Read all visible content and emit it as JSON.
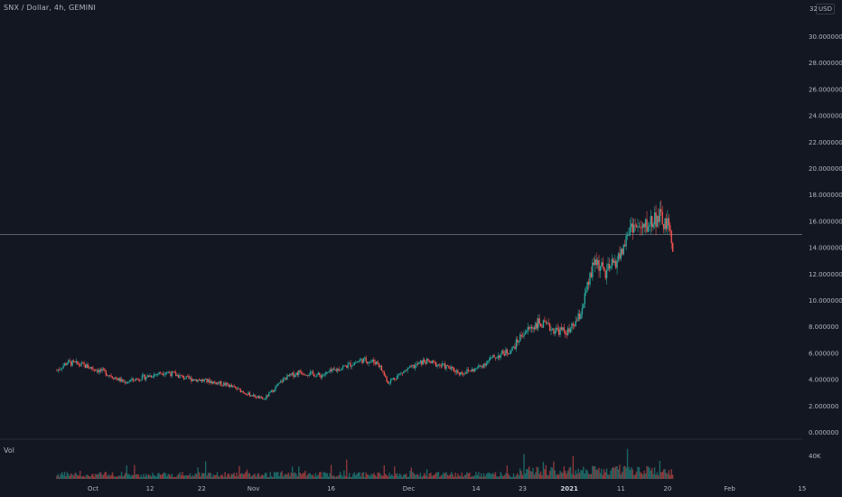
{
  "header": {
    "title": "SNX / Dollar, 4h, GEMINI"
  },
  "currency": {
    "top_value": "32",
    "label": "USD"
  },
  "volume": {
    "label": "Vol",
    "tick": "40K"
  },
  "colors": {
    "background": "#131722",
    "up": "#26a69a",
    "down": "#ef5350",
    "grid": "#2a2e39",
    "line": "#5d606b"
  },
  "chart_data": {
    "type": "candlestick",
    "y_ticks": [
      "30.000000",
      "28.000000",
      "26.000000",
      "24.000000",
      "22.000000",
      "20.000000",
      "18.000000",
      "16.000000",
      "14.000000",
      "12.000000",
      "10.000000",
      "8.000000",
      "6.000000",
      "4.000000",
      "2.000000",
      "0.000000"
    ],
    "x_ticks": [
      {
        "label": "Oct",
        "date": "2020-10-01",
        "bold": false
      },
      {
        "label": "12",
        "date": "2020-10-12",
        "bold": false
      },
      {
        "label": "22",
        "date": "2020-10-22",
        "bold": false
      },
      {
        "label": "Nov",
        "date": "2020-11-01",
        "bold": false
      },
      {
        "label": "16",
        "date": "2020-11-16",
        "bold": false
      },
      {
        "label": "Dec",
        "date": "2020-12-01",
        "bold": false
      },
      {
        "label": "14",
        "date": "2020-12-14",
        "bold": false
      },
      {
        "label": "23",
        "date": "2020-12-23",
        "bold": false
      },
      {
        "label": "2021",
        "date": "2021-01-01",
        "bold": true
      },
      {
        "label": "11",
        "date": "2021-01-11",
        "bold": false
      },
      {
        "label": "20",
        "date": "2021-01-20",
        "bold": false
      },
      {
        "label": "Feb",
        "date": "2021-02-01",
        "bold": false
      },
      {
        "label": "15",
        "date": "2021-02-15",
        "bold": false
      }
    ],
    "ylim": [
      0,
      32
    ],
    "xlim": [
      "2020-09-20",
      "2021-02-22"
    ],
    "horizontal_line": 15.0,
    "price_path": [
      [
        "2020-09-24",
        4.7
      ],
      [
        "2020-09-26",
        5.3
      ],
      [
        "2020-09-29",
        5.1
      ],
      [
        "2020-10-03",
        4.6
      ],
      [
        "2020-10-07",
        3.8
      ],
      [
        "2020-10-11",
        4.2
      ],
      [
        "2020-10-15",
        4.6
      ],
      [
        "2020-10-19",
        4.1
      ],
      [
        "2020-10-23",
        3.9
      ],
      [
        "2020-10-27",
        3.6
      ],
      [
        "2020-10-31",
        2.9
      ],
      [
        "2020-11-03",
        2.5
      ],
      [
        "2020-11-07",
        4.1
      ],
      [
        "2020-11-10",
        4.6
      ],
      [
        "2020-11-14",
        4.3
      ],
      [
        "2020-11-18",
        4.9
      ],
      [
        "2020-11-22",
        5.5
      ],
      [
        "2020-11-25",
        5.3
      ],
      [
        "2020-11-27",
        3.8
      ],
      [
        "2020-11-30",
        4.6
      ],
      [
        "2020-12-04",
        5.4
      ],
      [
        "2020-12-08",
        5.0
      ],
      [
        "2020-12-11",
        4.5
      ],
      [
        "2020-12-14",
        4.8
      ],
      [
        "2020-12-17",
        5.6
      ],
      [
        "2020-12-21",
        6.3
      ],
      [
        "2020-12-23",
        7.5
      ],
      [
        "2020-12-26",
        8.3
      ],
      [
        "2020-12-29",
        7.8
      ],
      [
        "2021-01-01",
        7.6
      ],
      [
        "2021-01-03",
        8.8
      ],
      [
        "2021-01-06",
        13.1
      ],
      [
        "2021-01-08",
        12.0
      ],
      [
        "2021-01-11",
        13.5
      ],
      [
        "2021-01-13",
        15.8
      ],
      [
        "2021-01-15",
        15.3
      ],
      [
        "2021-01-18",
        16.4
      ],
      [
        "2021-01-20",
        15.6
      ],
      [
        "2021-01-21",
        14.3
      ]
    ],
    "volume_series": {
      "name": "Vol",
      "max_label": "40K"
    }
  }
}
